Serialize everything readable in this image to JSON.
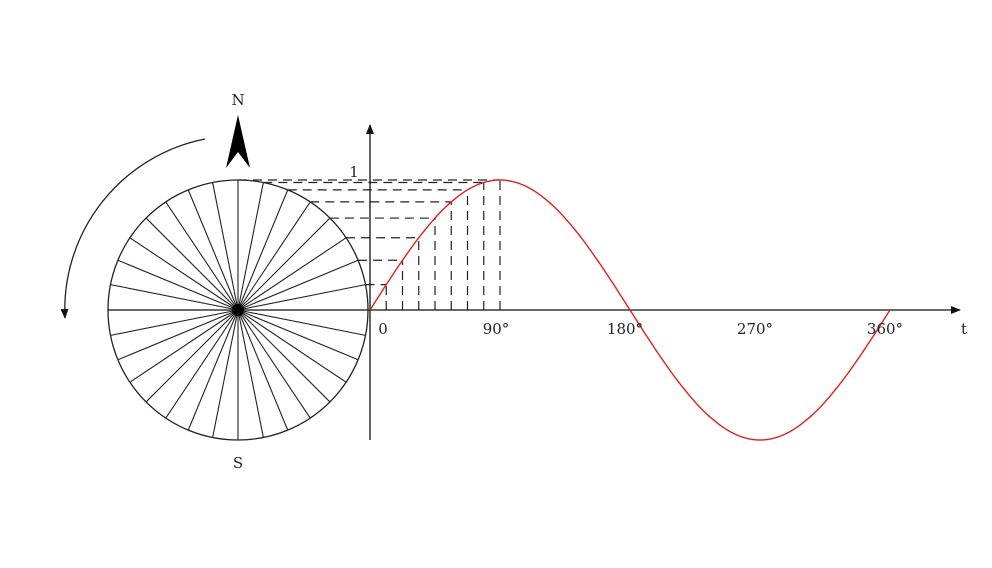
{
  "compass": {
    "north": "N",
    "south": "S"
  },
  "axis": {
    "y_tick": "1",
    "origin": "0",
    "x_ticks": [
      "90°",
      "180°",
      "270°",
      "360°"
    ],
    "x_label": "t"
  },
  "wheel": {
    "spokes": 32,
    "rotation": "counterclockwise"
  },
  "projection": {
    "step_degrees": 11.25,
    "steps_shown": 8
  },
  "colors": {
    "sine": "#e02020",
    "ink": "#111111"
  }
}
